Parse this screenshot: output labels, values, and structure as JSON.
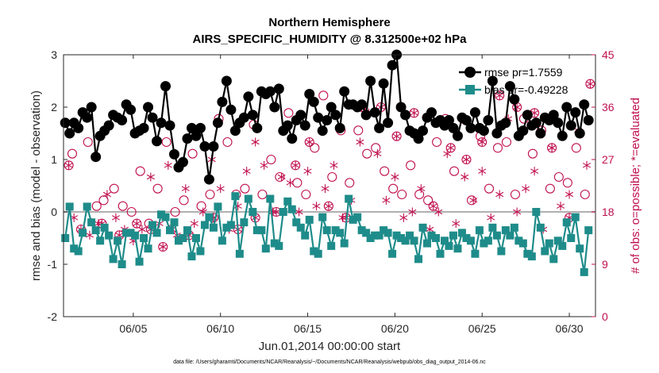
{
  "chart_data": {
    "type": "line",
    "title": [
      "Northern Hemisphere",
      "AIRS_SPECIFIC_HUMIDITY @ 8.312500e+02 hPa"
    ],
    "xlabel": "Jun.01,2014 00:00:00 start",
    "ylabel_left": "rmse and bias (model - observation)",
    "ylabel_right": "# of obs: o=possible; *=evaluated",
    "footnote": "data file: /Users/gharamti/Documents/NCAR/Reanalysis/~/Documents/NCAR/Reanalysis/webpub/obs_diag_output_2014-06.nc",
    "xlim": [
      1.0,
      31.5
    ],
    "ylim_left": [
      -2,
      3
    ],
    "ylim_right": [
      0,
      45
    ],
    "x_ticks": [
      5,
      10,
      15,
      20,
      25,
      30
    ],
    "x_tick_labels": [
      "06/05",
      "06/10",
      "06/15",
      "06/20",
      "06/25",
      "06/30"
    ],
    "y_ticks_left": [
      -2,
      -1,
      0,
      1,
      2,
      3
    ],
    "y_ticks_left_labels": [
      "-2",
      "-1",
      "0",
      "1",
      "2",
      "3"
    ],
    "y_ticks_right": [
      0,
      9,
      18,
      27,
      36,
      45
    ],
    "y_ticks_right_labels": [
      "0",
      "9",
      "18",
      "27",
      "36",
      "45"
    ],
    "zero_line": 0,
    "legend": {
      "position": "top-right",
      "entries": [
        "rmse pr=1.7559",
        "bias pr=-0.49228"
      ]
    },
    "colors": {
      "rmse": "#000000",
      "bias": "#1e8c8a",
      "counts": "#c0104f",
      "zero": "#b0b0b0"
    },
    "series": [
      {
        "name": "rmse",
        "axis": "left",
        "x": [
          1.1,
          1.35,
          1.6,
          1.85,
          2.1,
          2.35,
          2.6,
          2.85,
          3.1,
          3.35,
          3.6,
          3.85,
          4.1,
          4.35,
          4.6,
          4.85,
          5.1,
          5.35,
          5.6,
          5.85,
          6.1,
          6.35,
          6.6,
          6.85,
          7.1,
          7.35,
          7.6,
          7.85,
          8.1,
          8.35,
          8.6,
          8.85,
          9.1,
          9.35,
          9.6,
          9.85,
          10.1,
          10.35,
          10.6,
          10.85,
          11.1,
          11.35,
          11.6,
          11.85,
          12.1,
          12.35,
          12.6,
          12.85,
          13.1,
          13.35,
          13.6,
          13.85,
          14.1,
          14.35,
          14.6,
          14.85,
          15.1,
          15.35,
          15.6,
          15.85,
          16.1,
          16.35,
          16.6,
          16.85,
          17.1,
          17.35,
          17.6,
          17.85,
          18.1,
          18.35,
          18.6,
          18.85,
          19.1,
          19.35,
          19.6,
          19.85,
          20.1,
          20.35,
          20.6,
          20.85,
          21.1,
          21.35,
          21.6,
          21.85,
          22.1,
          22.35,
          22.6,
          22.85,
          23.1,
          23.35,
          23.6,
          23.85,
          24.1,
          24.35,
          24.6,
          24.85,
          25.1,
          25.35,
          25.6,
          25.85,
          26.1,
          26.35,
          26.6,
          26.85,
          27.1,
          27.35,
          27.6,
          27.85,
          28.1,
          28.35,
          28.6,
          28.85,
          29.1,
          29.35,
          29.6,
          29.85,
          30.1,
          30.35,
          30.6,
          30.85,
          31.1
        ],
        "values": [
          1.7,
          1.5,
          1.7,
          1.6,
          1.9,
          1.8,
          2.0,
          1.05,
          1.45,
          1.55,
          1.65,
          1.85,
          1.8,
          1.75,
          2.05,
          1.95,
          1.5,
          1.55,
          1.6,
          2.0,
          1.8,
          1.35,
          1.7,
          2.4,
          1.65,
          1.1,
          0.85,
          0.95,
          1.4,
          1.6,
          1.45,
          1.6,
          1.25,
          0.62,
          1.25,
          1.7,
          2.1,
          2.5,
          1.95,
          1.55,
          1.7,
          1.8,
          2.2,
          1.85,
          1.6,
          2.3,
          2.25,
          2.3,
          2.0,
          2.35,
          1.55,
          1.65,
          1.4,
          1.75,
          1.85,
          1.65,
          2.25,
          2.1,
          1.8,
          1.55,
          1.75,
          2.0,
          1.85,
          1.6,
          2.3,
          2.05,
          2.05,
          2.0,
          2.05,
          1.85,
          2.5,
          1.9,
          1.6,
          2.45,
          1.7,
          2.8,
          3.0,
          2.0,
          1.85,
          1.55,
          1.5,
          1.4,
          1.55,
          1.8,
          1.9,
          1.7,
          1.75,
          1.65,
          1.75,
          1.6,
          1.45,
          1.8,
          1.75,
          1.6,
          1.9,
          1.6,
          1.55,
          1.75,
          2.5,
          1.5,
          1.65,
          1.7,
          2.4,
          2.15,
          1.45,
          1.55,
          1.85,
          1.65,
          1.7,
          1.5,
          1.8,
          1.75,
          1.85,
          1.7,
          1.45,
          2.0,
          1.65,
          1.9,
          1.5,
          2.05,
          1.75
        ]
      },
      {
        "name": "bias",
        "axis": "left",
        "x": [
          1.1,
          1.35,
          1.6,
          1.85,
          2.1,
          2.35,
          2.6,
          2.85,
          3.1,
          3.35,
          3.6,
          3.85,
          4.1,
          4.35,
          4.6,
          4.85,
          5.1,
          5.35,
          5.6,
          5.85,
          6.1,
          6.35,
          6.6,
          6.85,
          7.1,
          7.35,
          7.6,
          7.85,
          8.1,
          8.35,
          8.6,
          8.85,
          9.1,
          9.35,
          9.6,
          9.85,
          10.1,
          10.35,
          10.6,
          10.85,
          11.1,
          11.35,
          11.6,
          11.85,
          12.1,
          12.35,
          12.6,
          12.85,
          13.1,
          13.35,
          13.6,
          13.85,
          14.1,
          14.35,
          14.6,
          14.85,
          15.1,
          15.35,
          15.6,
          15.85,
          16.1,
          16.35,
          16.6,
          16.85,
          17.1,
          17.35,
          17.6,
          17.85,
          18.1,
          18.35,
          18.6,
          18.85,
          19.1,
          19.35,
          19.6,
          19.85,
          20.1,
          20.35,
          20.6,
          20.85,
          21.1,
          21.35,
          21.6,
          21.85,
          22.1,
          22.35,
          22.6,
          22.85,
          23.1,
          23.35,
          23.6,
          23.85,
          24.1,
          24.35,
          24.6,
          24.85,
          25.1,
          25.35,
          25.6,
          25.85,
          26.1,
          26.35,
          26.6,
          26.85,
          27.1,
          27.35,
          27.6,
          27.85,
          28.1,
          28.35,
          28.6,
          28.85,
          29.1,
          29.35,
          29.6,
          29.85,
          30.1,
          30.35,
          30.6,
          30.85,
          31.1
        ],
        "values": [
          -0.5,
          0.1,
          -0.7,
          -0.75,
          -0.4,
          0.1,
          -0.2,
          -0.35,
          -0.55,
          -0.3,
          -0.45,
          -0.9,
          -0.55,
          -1.0,
          -0.4,
          -0.4,
          -0.45,
          -0.95,
          -0.5,
          -0.7,
          -0.25,
          -0.4,
          -0.05,
          -0.1,
          -0.35,
          -0.2,
          -0.55,
          -0.5,
          -0.35,
          -0.85,
          -0.5,
          -0.75,
          -0.25,
          -0.1,
          -0.3,
          0.1,
          -0.55,
          -0.3,
          -0.25,
          0.3,
          -0.8,
          -0.2,
          0.25,
          0.0,
          -0.35,
          -0.35,
          -0.7,
          0.25,
          -0.6,
          -0.65,
          0.0,
          0.2,
          0.05,
          -0.2,
          -0.3,
          -0.45,
          -0.15,
          -0.75,
          -0.8,
          -0.1,
          -0.35,
          -0.65,
          -0.35,
          -0.4,
          -0.6,
          0.25,
          -0.15,
          -0.1,
          -0.35,
          -0.4,
          -0.5,
          -0.45,
          -0.45,
          -0.35,
          -0.4,
          -0.8,
          -0.45,
          -0.5,
          -0.55,
          -0.45,
          -0.55,
          -0.9,
          -0.3,
          -0.6,
          -0.45,
          -0.5,
          -0.8,
          -0.55,
          -0.65,
          -0.45,
          -0.7,
          -0.4,
          -0.5,
          -0.55,
          -0.8,
          -0.35,
          -0.6,
          -0.55,
          -0.3,
          -0.45,
          -0.75,
          -0.35,
          -0.45,
          -0.3,
          -0.55,
          -0.6,
          -0.8,
          -0.85,
          0.0,
          -0.3,
          -0.75,
          -0.6,
          -0.9,
          -0.55,
          -0.65,
          -0.2,
          -0.5,
          -0.1,
          -0.7,
          -1.15,
          -0.35
        ]
      },
      {
        "name": "possible",
        "axis": "right",
        "marker": "o",
        "x": [
          1.5,
          2.4,
          2.9,
          3.3,
          3.9,
          4.4,
          4.9,
          5.4,
          5.9,
          6.4,
          6.9,
          7.4,
          7.9,
          8.4,
          8.9,
          9.4,
          9.9,
          10.4,
          10.9,
          11.4,
          11.9,
          12.4,
          12.9,
          13.4,
          13.9,
          14.4,
          14.9,
          15.4,
          15.9,
          16.4,
          16.9,
          17.4,
          17.9,
          18.4,
          18.9,
          19.4,
          19.9,
          20.4,
          20.9,
          21.4,
          21.9,
          22.4,
          22.9,
          23.4,
          23.9,
          24.4,
          24.9,
          25.4,
          25.9,
          26.4,
          26.9,
          27.4,
          27.9,
          28.4,
          28.9,
          29.4,
          29.9,
          30.4,
          30.9
        ],
        "values": [
          28,
          30,
          19,
          20,
          22,
          19,
          18,
          25,
          16,
          22,
          30,
          18,
          20,
          28,
          19,
          21,
          34,
          30,
          21,
          22,
          33,
          21,
          27,
          24,
          35,
          23,
          21,
          29,
          38,
          24,
          32,
          23,
          32,
          28,
          29,
          25,
          22,
          21,
          26,
          21,
          20,
          30,
          34,
          25,
          34,
          20,
          31,
          22,
          29,
          30,
          21,
          34,
          28,
          32,
          22,
          24,
          23,
          29,
          21
        ]
      },
      {
        "name": "evaluated",
        "axis": "right",
        "marker": "*",
        "x": [
          1.6,
          2.5,
          3.0,
          3.5,
          4.0,
          4.5,
          5.0,
          5.5,
          6.0,
          6.5,
          7.0,
          7.5,
          8.0,
          8.5,
          9.0,
          9.5,
          10.0,
          10.5,
          11.0,
          11.5,
          12.0,
          12.5,
          13.0,
          13.5,
          14.0,
          14.5,
          15.0,
          15.5,
          16.0,
          16.5,
          17.0,
          17.5,
          18.0,
          18.5,
          19.0,
          19.5,
          20.0,
          20.5,
          21.0,
          21.5,
          22.0,
          22.5,
          23.0,
          23.5,
          24.0,
          24.5,
          25.0,
          25.5,
          26.0,
          26.5,
          27.0,
          27.5,
          28.0,
          28.5,
          29.0,
          29.5,
          30.0,
          30.5,
          31.0
        ],
        "values": [
          17,
          14,
          16,
          21,
          17,
          15,
          13,
          15,
          24,
          16,
          26,
          14,
          22,
          16,
          18,
          27,
          22,
          15,
          19,
          25,
          30,
          26,
          18,
          24,
          23,
          18,
          25,
          19,
          22,
          26,
          17,
          20,
          30,
          35,
          28,
          20,
          24,
          17,
          18,
          22,
          15,
          18,
          28,
          16,
          24,
          20,
          25,
          17,
          21,
          34,
          18,
          22,
          25,
          15,
          29,
          19,
          21,
          32,
          26
        ]
      },
      {
        "name": "possible+evaluated",
        "axis": "right",
        "marker": "o*",
        "x": [
          1.3,
          2.0,
          3.2,
          4.2,
          5.2,
          6.0,
          6.7,
          7.2,
          8.2,
          9.6,
          11.0,
          12.0,
          13.2,
          14.3,
          15.1,
          16.2,
          17.2,
          18.1,
          19.2,
          20.1,
          21.1,
          22.2,
          23.2,
          24.1,
          25.0,
          26.0,
          27.0,
          28.0,
          29.0,
          30.0,
          31.2
        ],
        "values": [
          26,
          15,
          16,
          14,
          16,
          15,
          12,
          15,
          14,
          17,
          15,
          17,
          18,
          26,
          30,
          19,
          17,
          36,
          36,
          31,
          35,
          19,
          29,
          27,
          30,
          38,
          36,
          35,
          29,
          17,
          40
        ]
      }
    ]
  }
}
